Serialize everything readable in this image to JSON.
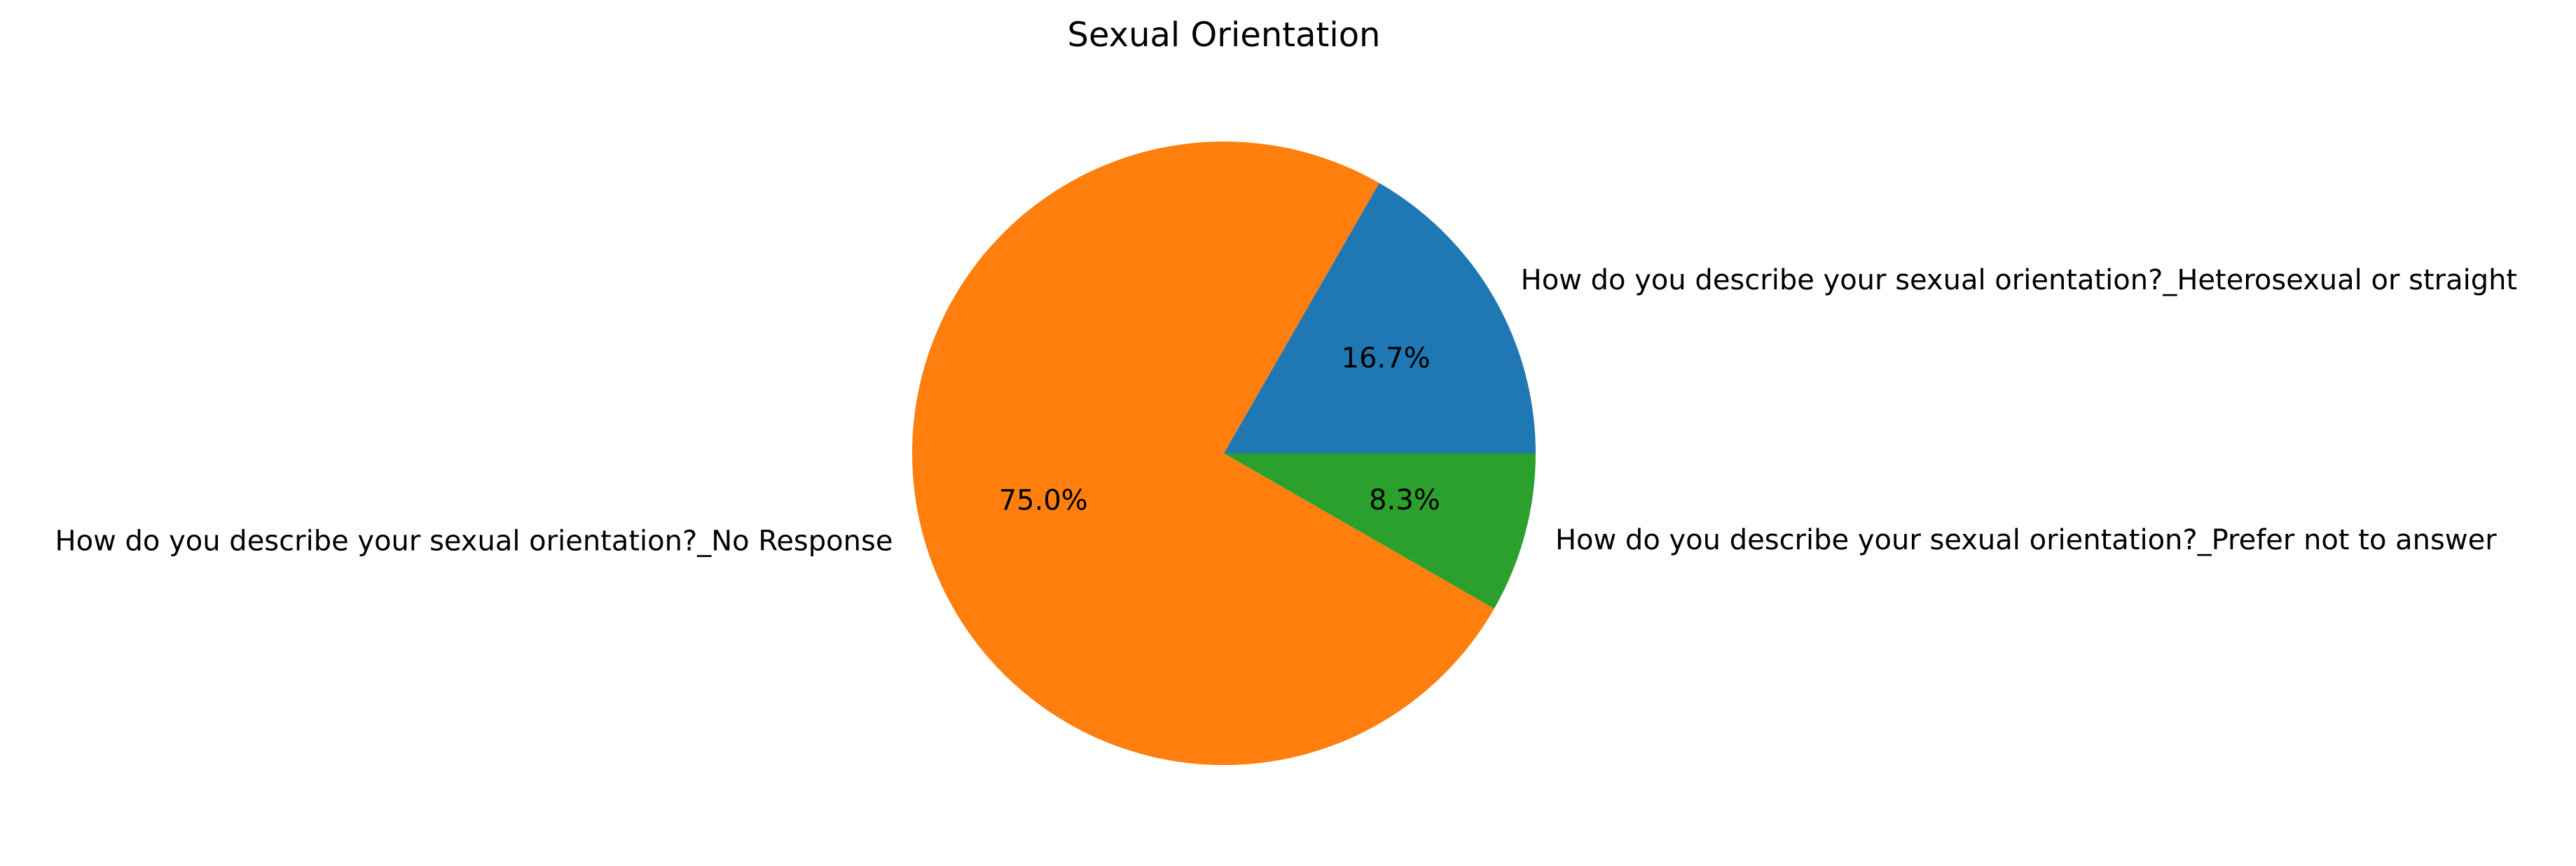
{
  "chart_data": {
    "type": "pie",
    "title": "Sexual Orientation",
    "slices": [
      {
        "label": "How do you describe your sexual orientation?_Heterosexual or straight",
        "value": 16.7,
        "pct_label": "16.7%",
        "color": "#1f77b4"
      },
      {
        "label": "How do you describe your sexual orientation?_No Response",
        "value": 75.0,
        "pct_label": "75.0%",
        "color": "#ff7f0e"
      },
      {
        "label": "How do you describe your sexual orientation?_Prefer not to answer",
        "value": 8.3,
        "pct_label": "8.3%",
        "color": "#2ca02c"
      }
    ],
    "start_angle_deg": 0,
    "direction": "counterclockwise",
    "legend": "none"
  }
}
